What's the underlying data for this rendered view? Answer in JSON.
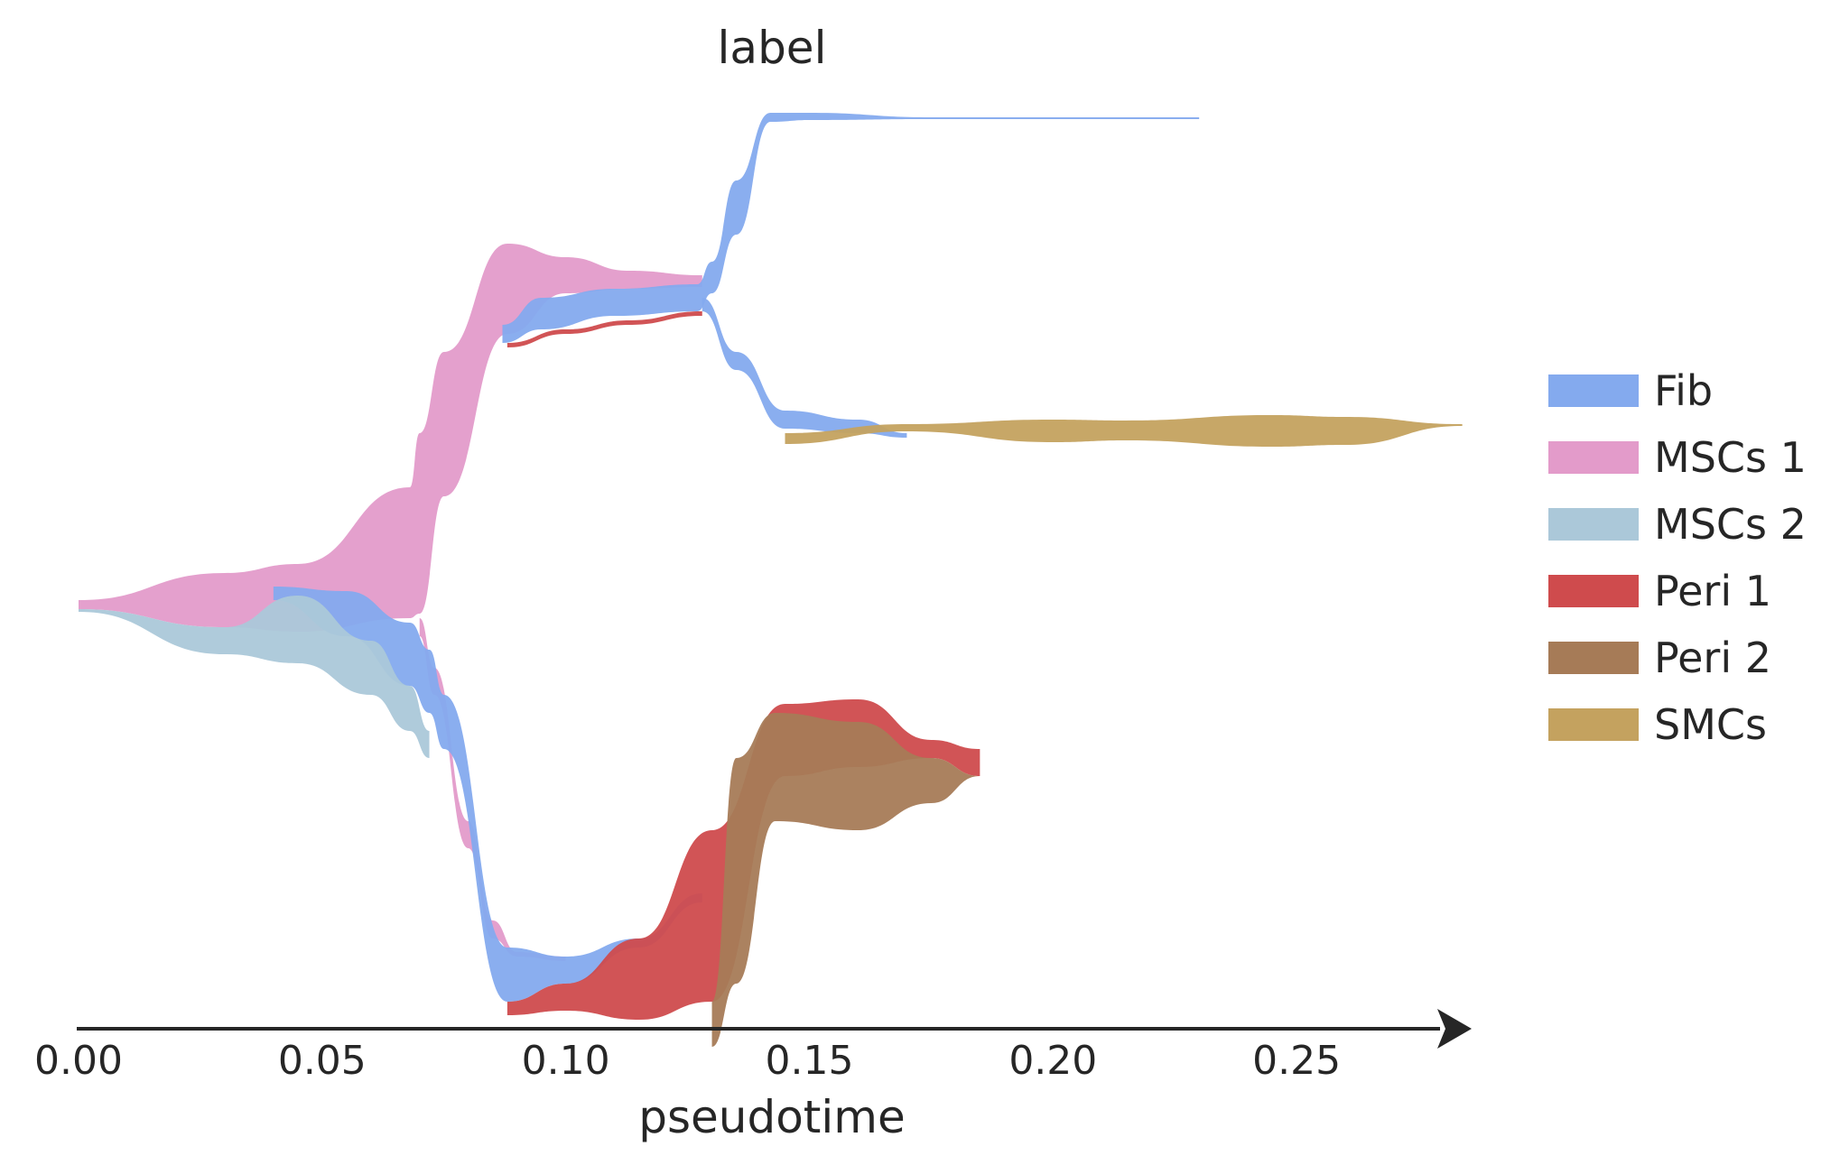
{
  "chart_data": {
    "type": "area",
    "title": "label",
    "xlabel": "pseudotime",
    "ylabel": "",
    "xlim": [
      0.0,
      0.285
    ],
    "xticks": [
      0.0,
      0.05,
      0.1,
      0.15,
      0.2,
      0.25
    ],
    "xtick_labels": [
      "0.00",
      "0.05",
      "0.10",
      "0.15",
      "0.20",
      "0.25"
    ],
    "grid": false,
    "legend_position": "right",
    "series": [
      {
        "name": "Fib",
        "color": "#84aaee"
      },
      {
        "name": "MSCs 1",
        "color": "#e39bca"
      },
      {
        "name": "MSCs 2",
        "color": "#abc8d9"
      },
      {
        "name": "Peri 1",
        "color": "#cf4b4d"
      },
      {
        "name": "Peri 2",
        "color": "#a67b57"
      },
      {
        "name": "SMCs",
        "color": "#c4a25f"
      }
    ],
    "ribbons": [
      {
        "series": "MSCs 1",
        "x": [
          0.0,
          0.03,
          0.045,
          0.068,
          0.07,
          0.075,
          0.088,
          0.1,
          0.113,
          0.128
        ],
        "upper": [
          0.225,
          0.255,
          0.265,
          0.35,
          0.41,
          0.5,
          0.62,
          0.605,
          0.59,
          0.585
        ],
        "lower": [
          0.215,
          0.195,
          0.19,
          0.205,
          0.21,
          0.34,
          0.52,
          0.565,
          0.57,
          0.572
        ]
      },
      {
        "series": "MSCs 1",
        "x": [
          0.07,
          0.073,
          0.08,
          0.085,
          0.09,
          0.1
        ],
        "upper": [
          0.205,
          0.15,
          -0.02,
          -0.13,
          -0.165,
          -0.17
        ],
        "lower": [
          0.185,
          0.12,
          -0.05,
          -0.15,
          -0.17,
          -0.175
        ]
      },
      {
        "series": "Fib",
        "x": [
          0.087,
          0.095,
          0.11,
          0.127,
          0.13,
          0.135,
          0.142,
          0.15,
          0.175,
          0.23
        ],
        "upper": [
          0.53,
          0.56,
          0.57,
          0.575,
          0.6,
          0.69,
          0.765,
          0.765,
          0.76,
          0.76
        ],
        "lower": [
          0.51,
          0.525,
          0.54,
          0.545,
          0.565,
          0.63,
          0.755,
          0.757,
          0.758,
          0.758
        ]
      },
      {
        "series": "Fib",
        "x": [
          0.128,
          0.135,
          0.145,
          0.16,
          0.17
        ],
        "upper": [
          0.56,
          0.5,
          0.435,
          0.425,
          0.41
        ],
        "lower": [
          0.545,
          0.48,
          0.415,
          0.41,
          0.405
        ]
      },
      {
        "series": "Fib",
        "x": [
          0.04,
          0.055,
          0.068,
          0.072,
          0.075,
          0.088,
          0.1,
          0.115,
          0.128
        ],
        "upper": [
          0.24,
          0.235,
          0.2,
          0.17,
          0.12,
          -0.16,
          -0.17,
          -0.15,
          -0.1
        ],
        "lower": [
          0.225,
          0.185,
          0.13,
          0.1,
          0.06,
          -0.22,
          -0.2,
          -0.16,
          -0.11
        ]
      },
      {
        "series": "MSCs 2",
        "x": [
          0.0,
          0.03,
          0.045,
          0.06,
          0.068,
          0.072
        ],
        "upper": [
          0.215,
          0.195,
          0.23,
          0.18,
          0.13,
          0.08
        ],
        "lower": [
          0.212,
          0.165,
          0.155,
          0.12,
          0.08,
          0.05
        ]
      },
      {
        "series": "Peri 1",
        "x": [
          0.088,
          0.1,
          0.113,
          0.128
        ],
        "upper": [
          0.51,
          0.525,
          0.535,
          0.545
        ],
        "lower": [
          0.505,
          0.52,
          0.53,
          0.54
        ]
      },
      {
        "series": "Peri 1",
        "x": [
          0.088,
          0.1,
          0.115,
          0.13,
          0.145,
          0.16,
          0.175,
          0.185
        ],
        "upper": [
          -0.22,
          -0.2,
          -0.15,
          -0.03,
          0.11,
          0.115,
          0.07,
          0.06
        ],
        "lower": [
          -0.235,
          -0.23,
          -0.24,
          -0.22,
          0.03,
          0.04,
          0.05,
          0.03
        ]
      },
      {
        "series": "Peri 2",
        "x": [
          0.13,
          0.135,
          0.143,
          0.16,
          0.175,
          0.185
        ],
        "upper": [
          -0.22,
          0.05,
          0.1,
          0.09,
          0.05,
          0.03
        ],
        "lower": [
          -0.27,
          -0.2,
          -0.02,
          -0.03,
          0.0,
          0.03
        ]
      },
      {
        "series": "SMCs",
        "x": [
          0.145,
          0.17,
          0.2,
          0.215,
          0.245,
          0.26,
          0.284
        ],
        "upper": [
          0.41,
          0.42,
          0.425,
          0.424,
          0.43,
          0.428,
          0.42
        ],
        "lower": [
          0.398,
          0.412,
          0.4,
          0.402,
          0.395,
          0.397,
          0.418
        ]
      }
    ]
  }
}
